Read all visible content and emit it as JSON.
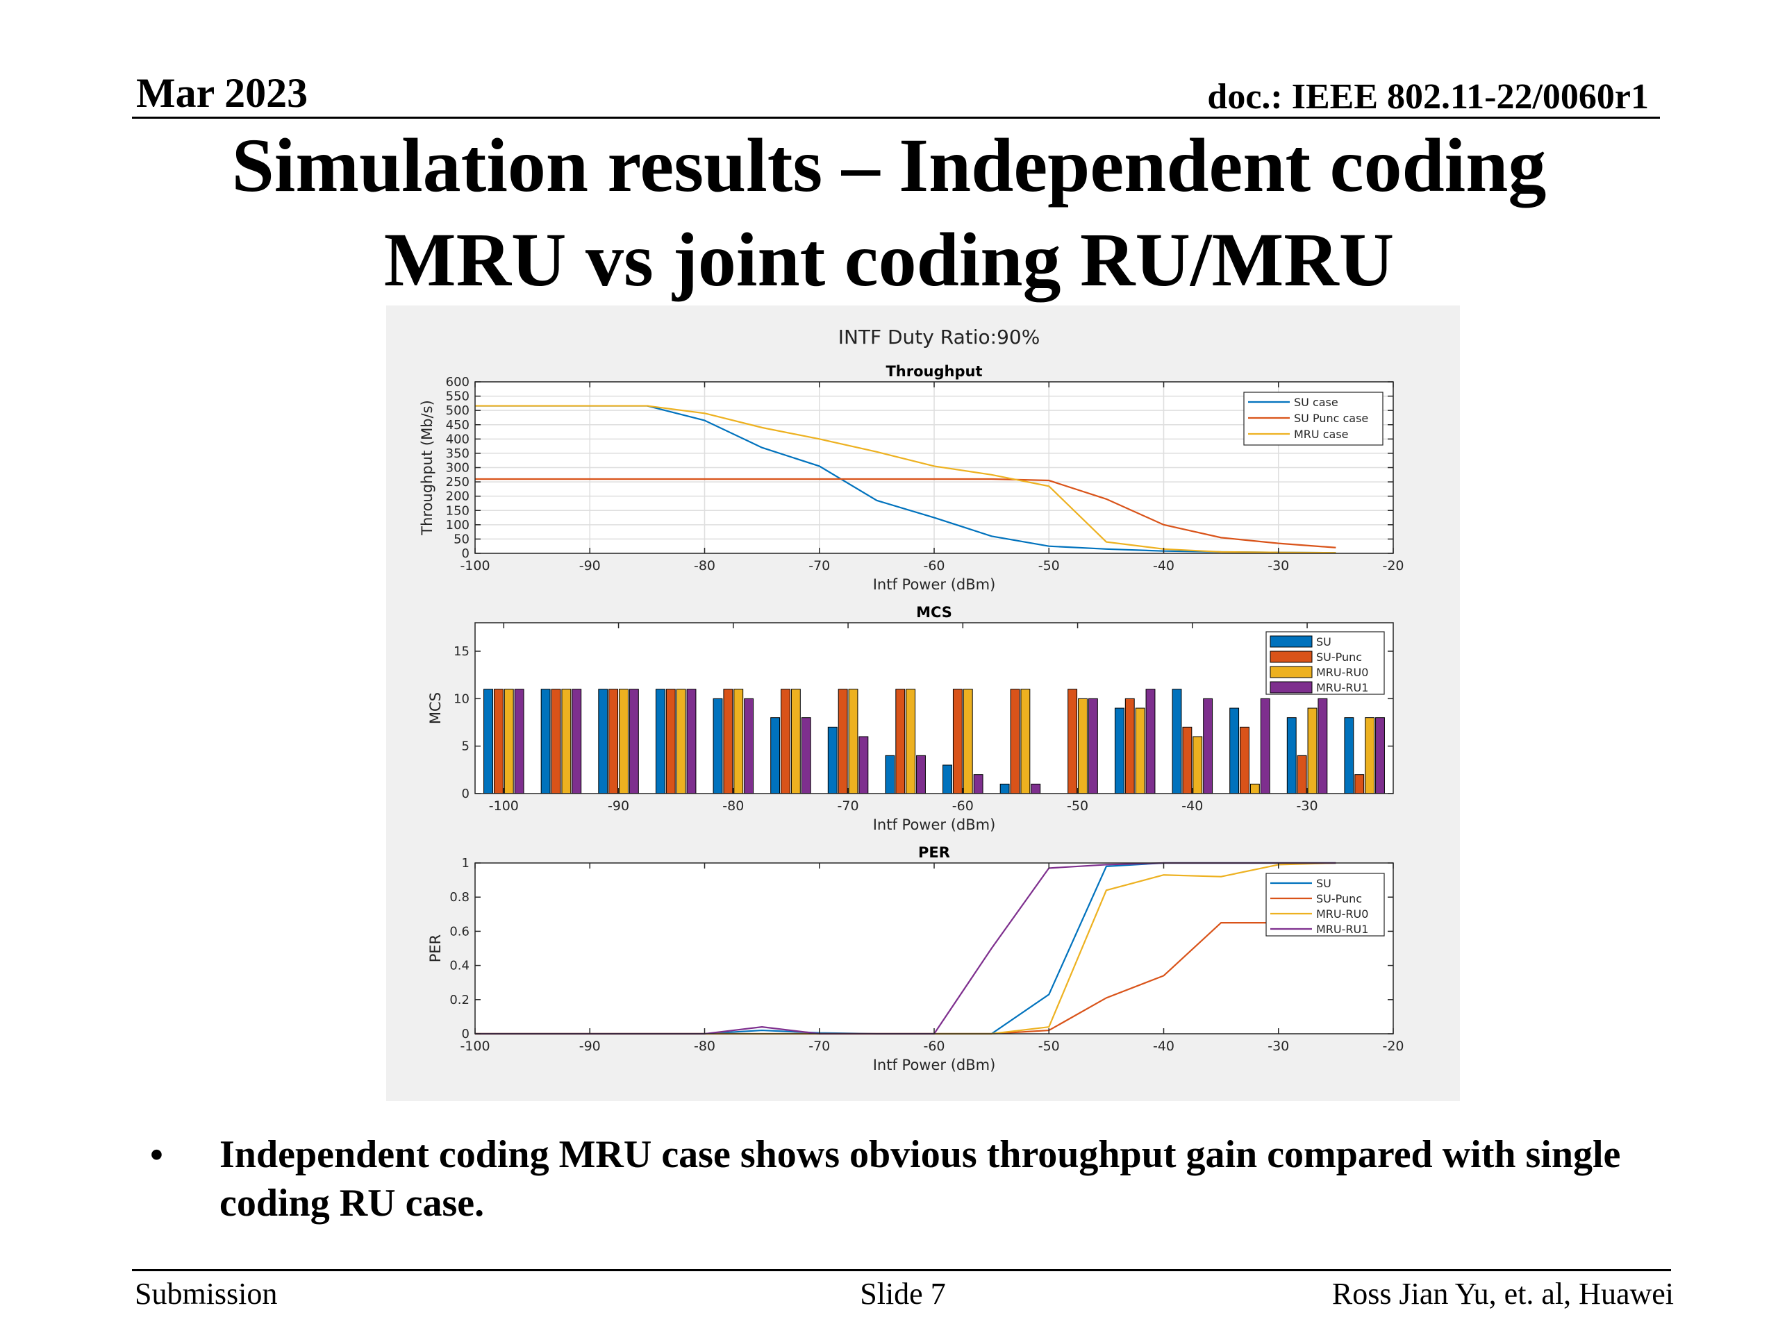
{
  "header": {
    "date": "Mar 2023",
    "doc": "doc.: IEEE 802.11-22/0060r1"
  },
  "title_lines": [
    "Simulation results – Independent coding",
    "MRU vs joint coding RU/MRU"
  ],
  "bullet": "Independent coding MRU case shows obvious throughput gain compared with single coding RU case.",
  "footer": {
    "left": "Submission",
    "center": "Slide 7",
    "right": "Ross Jian Yu, et. al, Huawei"
  },
  "figure_title": "INTF Duty Ratio:90%",
  "colors": {
    "blue": "#0072BD",
    "orange": "#D95319",
    "yellow": "#EDB120",
    "purple": "#7E2F8E"
  },
  "chart_data": [
    {
      "type": "line",
      "title": "Throughput",
      "xlabel": "Intf Power (dBm)",
      "ylabel": "Throughput (Mb/s)",
      "xlim": [
        -100,
        -20
      ],
      "ylim": [
        0,
        600
      ],
      "xticks": [
        -100,
        -90,
        -80,
        -70,
        -60,
        -50,
        -40,
        -30,
        -20
      ],
      "yticks": [
        0,
        50,
        100,
        150,
        200,
        250,
        300,
        350,
        400,
        450,
        500,
        550,
        600
      ],
      "grid": true,
      "legend": "top-right",
      "x": [
        -100,
        -95,
        -90,
        -85,
        -80,
        -75,
        -70,
        -65,
        -60,
        -55,
        -50,
        -45,
        -40,
        -35,
        -30,
        -25
      ],
      "series": [
        {
          "name": "SU case",
          "color": "#0072BD",
          "values": [
            516,
            516,
            516,
            516,
            465,
            370,
            305,
            185,
            125,
            60,
            25,
            15,
            8,
            5,
            3,
            2
          ]
        },
        {
          "name": "SU Punc case",
          "color": "#D95319",
          "values": [
            260,
            260,
            260,
            260,
            260,
            260,
            260,
            260,
            260,
            260,
            255,
            190,
            100,
            55,
            35,
            20
          ]
        },
        {
          "name": "MRU case",
          "color": "#EDB120",
          "values": [
            516,
            516,
            516,
            516,
            490,
            440,
            400,
            355,
            305,
            275,
            235,
            40,
            15,
            5,
            3,
            2
          ]
        }
      ]
    },
    {
      "type": "bar",
      "title": "MCS",
      "xlabel": "Intf Power (dBm)",
      "ylabel": "MCS",
      "xlim": [
        -102.5,
        -22.5
      ],
      "ylim": [
        0,
        18
      ],
      "xticks": [
        -100,
        -90,
        -80,
        -70,
        -60,
        -50,
        -40,
        -30
      ],
      "yticks": [
        0,
        5,
        10,
        15
      ],
      "grid": false,
      "legend": "top-right",
      "categories": [
        -100,
        -95,
        -90,
        -85,
        -80,
        -75,
        -70,
        -65,
        -60,
        -55,
        -50,
        -45,
        -40,
        -35,
        -30,
        -25
      ],
      "series": [
        {
          "name": "SU",
          "color": "#0072BD",
          "values": [
            11,
            11,
            11,
            11,
            10,
            8,
            7,
            4,
            3,
            1,
            0,
            9,
            11,
            9,
            8,
            8
          ]
        },
        {
          "name": "SU-Punc",
          "color": "#D95319",
          "values": [
            11,
            11,
            11,
            11,
            11,
            11,
            11,
            11,
            11,
            11,
            11,
            10,
            7,
            7,
            4,
            2
          ]
        },
        {
          "name": "MRU-RU0",
          "color": "#EDB120",
          "values": [
            11,
            11,
            11,
            11,
            11,
            11,
            11,
            11,
            11,
            11,
            10,
            9,
            6,
            1,
            9,
            8
          ]
        },
        {
          "name": "MRU-RU1",
          "color": "#7E2F8E",
          "values": [
            11,
            11,
            11,
            11,
            10,
            8,
            6,
            4,
            2,
            1,
            10,
            11,
            10,
            10,
            10,
            8
          ]
        }
      ]
    },
    {
      "type": "line",
      "title": "PER",
      "xlabel": "Intf Power (dBm)",
      "ylabel": "PER",
      "xlim": [
        -100,
        -20
      ],
      "ylim": [
        0,
        1
      ],
      "xticks": [
        -100,
        -90,
        -80,
        -70,
        -60,
        -50,
        -40,
        -30,
        -20
      ],
      "yticks": [
        0,
        0.2,
        0.4,
        0.6,
        0.8,
        1
      ],
      "grid": false,
      "legend": "top-right",
      "x": [
        -100,
        -95,
        -90,
        -85,
        -80,
        -75,
        -70,
        -65,
        -60,
        -55,
        -50,
        -45,
        -40,
        -35,
        -30,
        -25
      ],
      "series": [
        {
          "name": "SU",
          "color": "#0072BD",
          "values": [
            0,
            0,
            0,
            0,
            0,
            0.02,
            0.005,
            0,
            0,
            0,
            0.23,
            0.98,
            1,
            1,
            1,
            1
          ]
        },
        {
          "name": "SU-Punc",
          "color": "#D95319",
          "values": [
            0,
            0,
            0,
            0,
            0,
            0,
            0,
            0,
            0,
            0,
            0.02,
            0.21,
            0.34,
            0.65,
            0.65,
            0.65
          ]
        },
        {
          "name": "MRU-RU0",
          "color": "#EDB120",
          "values": [
            0,
            0,
            0,
            0,
            0,
            0,
            0,
            0,
            0,
            0,
            0.04,
            0.84,
            0.93,
            0.92,
            0.99,
            1
          ]
        },
        {
          "name": "MRU-RU1",
          "color": "#7E2F8E",
          "values": [
            0,
            0,
            0,
            0,
            0,
            0.04,
            0,
            0,
            0,
            0.5,
            0.97,
            0.99,
            1,
            1,
            1,
            1
          ]
        }
      ]
    }
  ]
}
